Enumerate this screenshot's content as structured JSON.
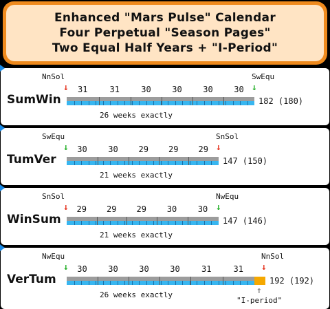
{
  "header": {
    "line1": "Enhanced \"Mars Pulse\" Calendar",
    "line2": "Four Perpetual \"Season Pages\"",
    "line3": "Two Equal Half Years + \"I-Period\""
  },
  "colors": {
    "orange": "#ef8a1d",
    "cream": "#ffe4c4",
    "gray_bar": "#9c9c9c",
    "blue_bar": "#38b6f0",
    "green_arrow": "#25b02a",
    "red_arrow": "#e5331f",
    "iperiod": "#f5a800"
  },
  "panels": [
    {
      "name": "SumWin",
      "start_label": "NnSol",
      "start_arrow": "red",
      "end_label": "SwEqu",
      "end_arrow": "green",
      "months": [
        "31",
        "31",
        "30",
        "30",
        "30",
        "30"
      ],
      "total": "182 (180)",
      "weeks_label": "26 weeks exactly"
    },
    {
      "name": "TumVer",
      "start_label": "SwEqu",
      "start_arrow": "green",
      "end_label": "SnSol",
      "end_arrow": "red",
      "months": [
        "30",
        "30",
        "29",
        "29",
        "29"
      ],
      "total": "147 (150)",
      "weeks_label": "21 weeks exactly"
    },
    {
      "name": "WinSum",
      "start_label": "SnSol",
      "start_arrow": "red",
      "end_label": "NwEqu",
      "end_arrow": "green",
      "months": [
        "29",
        "29",
        "29",
        "30",
        "30"
      ],
      "total": "147 (146)",
      "weeks_label": "21 weeks exactly"
    },
    {
      "name": "VerTum",
      "start_label": "NwEqu",
      "start_arrow": "green",
      "end_label": "NnSol",
      "end_arrow": "red",
      "months": [
        "30",
        "30",
        "30",
        "30",
        "31",
        "31"
      ],
      "total": "192 (192)",
      "weeks_label": "26 weeks exactly",
      "iperiod_label": "\"I-period\""
    }
  ]
}
